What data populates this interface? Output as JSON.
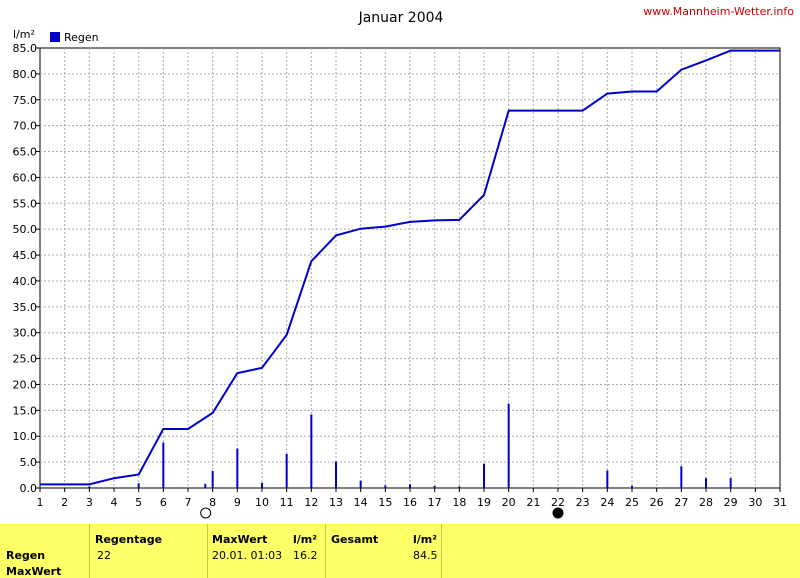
{
  "site_link": "www.Mannheim-Wetter.info",
  "colors": {
    "series": "#0000cc",
    "grid": "#aaaaaa",
    "footer_bg": "#ffff66"
  },
  "chart_data": {
    "type": "bar+line",
    "title": "Januar 2004",
    "ylabel": "l/m²",
    "legend": {
      "label": "Regen",
      "placement": "top-left"
    },
    "x": [
      1,
      2,
      3,
      4,
      5,
      6,
      7,
      8,
      9,
      10,
      11,
      12,
      13,
      14,
      15,
      16,
      17,
      18,
      19,
      20,
      21,
      22,
      23,
      24,
      25,
      26,
      27,
      28,
      29,
      30,
      31
    ],
    "xlim": [
      1,
      31
    ],
    "ylim": [
      0,
      85
    ],
    "y_ticks": [
      "0.0",
      "5.0",
      "10.0",
      "15.0",
      "20.0",
      "25.0",
      "30.0",
      "35.0",
      "40.0",
      "45.0",
      "50.0",
      "55.0",
      "60.0",
      "65.0",
      "70.0",
      "75.0",
      "80.0",
      "85.0"
    ],
    "grid": true,
    "moon_phases": [
      {
        "day": 8,
        "phase": "full-moon"
      },
      {
        "day": 22,
        "phase": "new-moon"
      }
    ],
    "series": [
      {
        "kind": "bars",
        "values": [
          [
            3,
            0.3
          ],
          [
            5,
            0.9
          ],
          [
            6,
            8.8
          ],
          [
            7.7,
            0.8
          ],
          [
            8,
            3.3
          ],
          [
            9,
            7.6
          ],
          [
            10,
            1.0
          ],
          [
            11,
            6.6
          ],
          [
            12,
            14.2
          ],
          [
            13,
            5.1
          ],
          [
            14,
            1.4
          ],
          [
            15,
            0.5
          ],
          [
            16,
            0.7
          ],
          [
            17,
            0.4
          ],
          [
            18,
            0.3
          ],
          [
            19,
            4.7
          ],
          [
            20,
            16.3
          ],
          [
            24,
            3.4
          ],
          [
            25,
            0.4
          ],
          [
            27,
            4.2
          ],
          [
            28,
            1.9
          ],
          [
            29,
            1.9
          ]
        ]
      },
      {
        "kind": "line",
        "values": [
          [
            1,
            0.7
          ],
          [
            2,
            0.7
          ],
          [
            3,
            0.7
          ],
          [
            4,
            1.9
          ],
          [
            5,
            2.6
          ],
          [
            6,
            11.4
          ],
          [
            7,
            11.4
          ],
          [
            8,
            14.5
          ],
          [
            9,
            22.2
          ],
          [
            10,
            23.2
          ],
          [
            11,
            29.6
          ],
          [
            12,
            43.8
          ],
          [
            13,
            48.8
          ],
          [
            14,
            50.1
          ],
          [
            15,
            50.5
          ],
          [
            16,
            51.4
          ],
          [
            17,
            51.7
          ],
          [
            18,
            51.8
          ],
          [
            19,
            56.6
          ],
          [
            20,
            72.9
          ],
          [
            21,
            72.9
          ],
          [
            22,
            72.9
          ],
          [
            23,
            72.9
          ],
          [
            24,
            76.2
          ],
          [
            25,
            76.6
          ],
          [
            26,
            76.6
          ],
          [
            27,
            80.8
          ],
          [
            28,
            82.6
          ],
          [
            29,
            84.5
          ],
          [
            30,
            84.5
          ],
          [
            31,
            84.5
          ]
        ]
      }
    ]
  },
  "footer": {
    "row_labels": [
      "Regen",
      "MaxWert"
    ],
    "regentage_header": "Regentage",
    "regentage_value": "22",
    "maxwert_header": "MaxWert",
    "maxwert_unit": "l/m²",
    "maxwert_date": "20.01.  01:03",
    "maxwert_value": "16.2",
    "gesamt_header": "Gesamt",
    "gesamt_unit": "l/m²",
    "gesamt_value": "84.5"
  }
}
